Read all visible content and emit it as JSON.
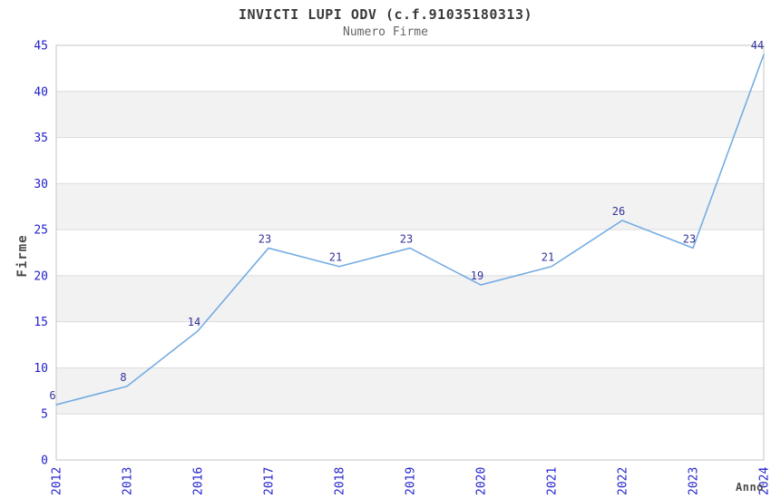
{
  "chart_data": {
    "type": "line",
    "title": "INVICTI LUPI ODV (c.f.91035180313)",
    "subtitle": "Numero Firme",
    "xlabel": "Anno",
    "ylabel": "Firme",
    "categories": [
      "2012",
      "2013",
      "2016",
      "2017",
      "2018",
      "2019",
      "2020",
      "2021",
      "2022",
      "2023",
      "2024"
    ],
    "values": [
      6,
      8,
      14,
      23,
      21,
      23,
      19,
      21,
      26,
      23,
      44
    ],
    "ylim": [
      0,
      45
    ],
    "ytick_step": 5,
    "yticks": [
      0,
      5,
      10,
      15,
      20,
      25,
      30,
      35,
      40,
      45
    ],
    "grid": true,
    "legend": "none",
    "band_fill_alternate": true,
    "colors": {
      "line": "#76ade2",
      "band": "#f2f2f2",
      "gridline": "#dcdcdc",
      "plot_border": "#c6c6c6",
      "tick_label": "#2222cc",
      "data_label": "#333399",
      "title": "#3a3a3a",
      "subtitle": "#666666",
      "axis_label": "#4a4a4a",
      "background": "#ffffff"
    }
  }
}
